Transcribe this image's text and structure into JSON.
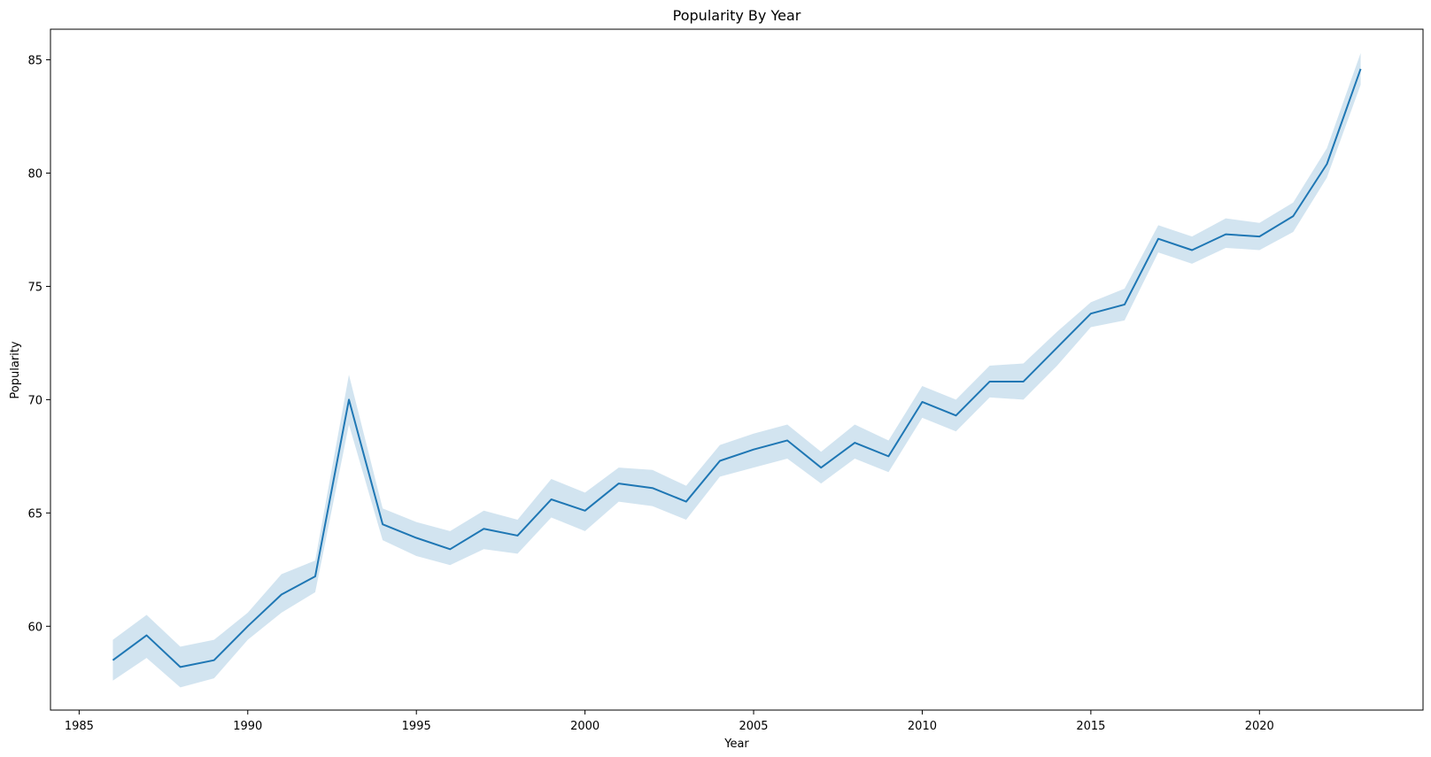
{
  "chart_data": {
    "type": "line",
    "title": "Popularity By Year",
    "xlabel": "Year",
    "ylabel": "Popularity",
    "xlim": [
      1984.15,
      2024.85
    ],
    "ylim": [
      56.3,
      86.35
    ],
    "xticks": [
      1985,
      1990,
      1995,
      2000,
      2005,
      2010,
      2015,
      2020
    ],
    "yticks": [
      60,
      65,
      70,
      75,
      80,
      85
    ],
    "grid": false,
    "colors": {
      "line": "#1f77b4",
      "band": "#1f77b4"
    },
    "series": [
      {
        "x": [
          1986,
          1987,
          1988,
          1989,
          1990,
          1991,
          1992,
          1993,
          1994,
          1995,
          1996,
          1997,
          1998,
          1999,
          2000,
          2001,
          2002,
          2003,
          2004,
          2005,
          2006,
          2007,
          2008,
          2009,
          2010,
          2011,
          2012,
          2013,
          2014,
          2015,
          2016,
          2017,
          2018,
          2019,
          2020,
          2021,
          2022,
          2023
        ],
        "y": [
          58.5,
          59.6,
          58.2,
          58.5,
          60.0,
          61.4,
          62.2,
          70.0,
          64.5,
          63.9,
          63.4,
          64.3,
          64.0,
          65.6,
          65.1,
          66.3,
          66.1,
          65.5,
          67.3,
          67.8,
          68.2,
          67.0,
          68.1,
          67.5,
          69.9,
          69.3,
          70.8,
          70.8,
          72.3,
          73.8,
          74.2,
          77.1,
          76.6,
          77.3,
          77.2,
          78.1,
          80.4,
          84.6
        ],
        "ci_lower": [
          57.6,
          58.6,
          57.3,
          57.7,
          59.4,
          60.6,
          61.5,
          68.9,
          63.8,
          63.1,
          62.7,
          63.4,
          63.2,
          64.8,
          64.2,
          65.5,
          65.3,
          64.7,
          66.6,
          67.0,
          67.4,
          66.3,
          67.4,
          66.8,
          69.2,
          68.6,
          70.1,
          70.0,
          71.5,
          73.2,
          73.5,
          76.5,
          76.0,
          76.7,
          76.6,
          77.4,
          79.8,
          83.9
        ],
        "ci_upper": [
          59.4,
          60.5,
          59.1,
          59.4,
          60.6,
          62.3,
          62.9,
          71.1,
          65.2,
          64.6,
          64.2,
          65.1,
          64.7,
          66.5,
          65.9,
          67.0,
          66.9,
          66.2,
          68.0,
          68.5,
          68.9,
          67.7,
          68.9,
          68.2,
          70.6,
          70.0,
          71.5,
          71.6,
          73.0,
          74.3,
          74.9,
          77.7,
          77.2,
          78.0,
          77.8,
          78.7,
          81.1,
          85.3
        ]
      }
    ]
  }
}
